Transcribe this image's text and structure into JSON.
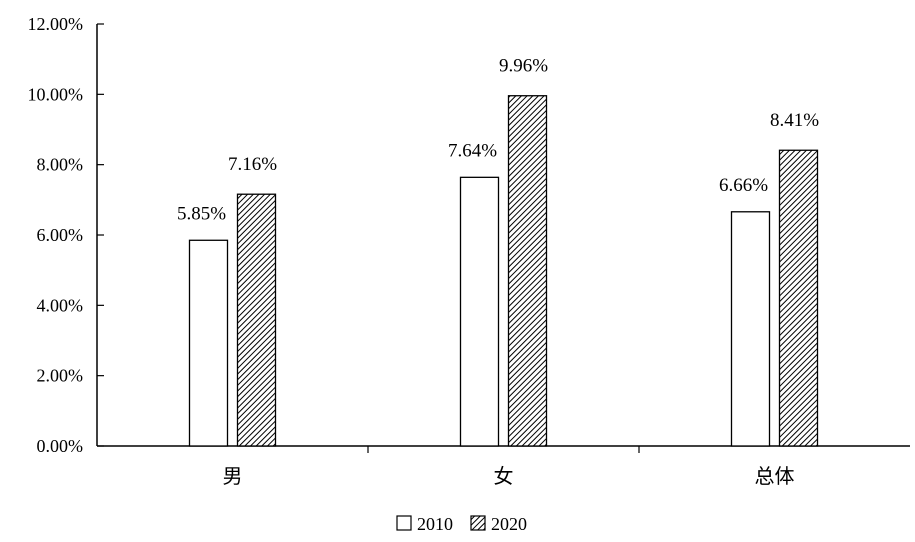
{
  "chart_data": {
    "type": "bar",
    "categories": [
      "男",
      "女",
      "总体"
    ],
    "series": [
      {
        "name": "2010",
        "values": [
          5.85,
          7.64,
          6.66
        ],
        "labels": [
          "5.85%",
          "7.64%",
          "6.66%"
        ],
        "fill": "white"
      },
      {
        "name": "2020",
        "values": [
          7.16,
          9.96,
          8.41
        ],
        "labels": [
          "7.16%",
          "9.96%",
          "8.41%"
        ],
        "fill": "hatched"
      }
    ],
    "ylim": [
      0,
      12
    ],
    "yticks": [
      "0.00%",
      "2.00%",
      "4.00%",
      "6.00%",
      "8.00%",
      "10.00%",
      "12.00%"
    ],
    "title": "",
    "xlabel": "",
    "ylabel": "",
    "legend_position": "bottom-center",
    "grid": false,
    "colors": {
      "axis": "#000000",
      "bar_outline": "#000000",
      "background": "#ffffff"
    }
  }
}
